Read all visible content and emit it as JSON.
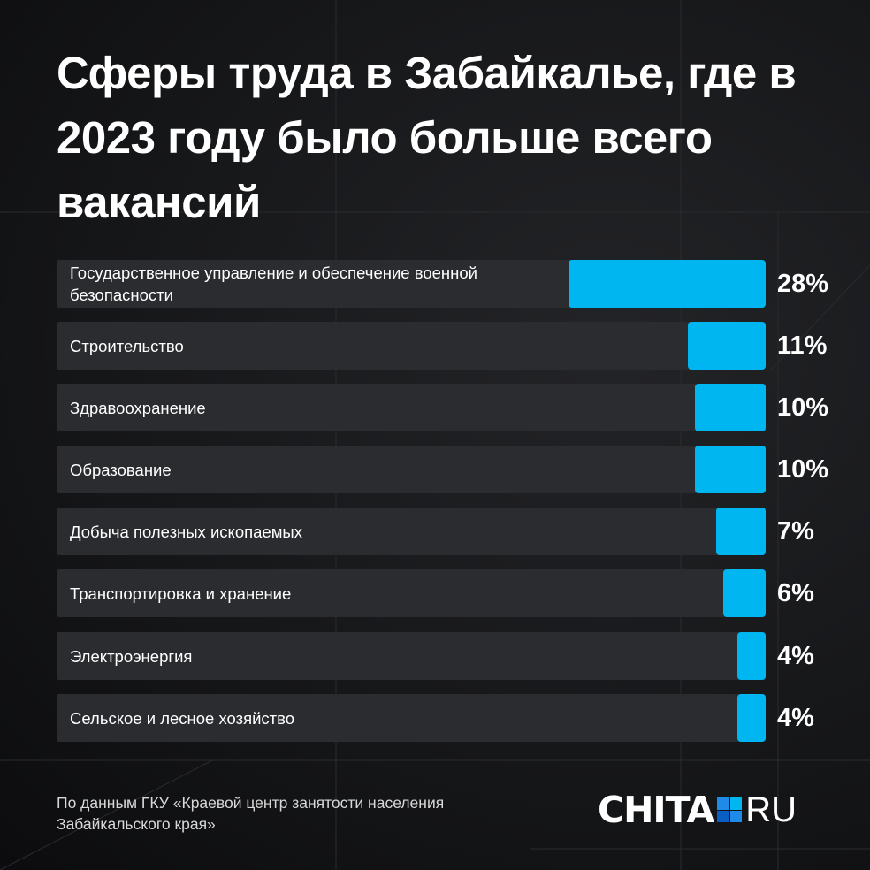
{
  "chart_data": {
    "type": "bar",
    "orientation": "horizontal",
    "title": "Сферы труда в Забайкалье, где в 2023 году было больше всего вакансий",
    "categories": [
      "Государственное управление и обеспечение военной безопасности",
      "Строительство",
      "Здравоохранение",
      "Образование",
      "Добыча полезных ископаемых",
      "Транспортировка и хранение",
      "Электроэнергия",
      "Сельское и лесное хозяйство"
    ],
    "values": [
      28,
      11,
      10,
      10,
      7,
      6,
      4,
      4
    ],
    "labels": [
      "28%",
      "11%",
      "10%",
      "10%",
      "7%",
      "6%",
      "4%",
      "4%"
    ],
    "unit": "%",
    "xlim": [
      0,
      100
    ],
    "bar_color": "#00b6f0"
  },
  "source": "По данным ГКУ «Краевой центр занятости населения Забайкальского края»",
  "logo": {
    "left": "CHITA",
    "right": "RU"
  }
}
